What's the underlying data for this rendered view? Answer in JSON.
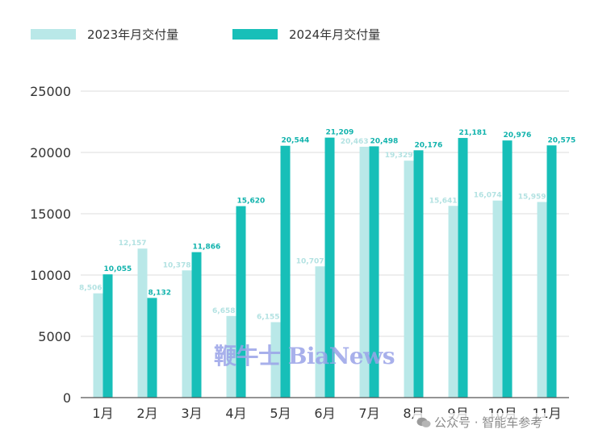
{
  "legend": {
    "items": [
      {
        "label": "2023年月交付量",
        "color": "#b9e8e8"
      },
      {
        "label": "2024年月交付量",
        "color": "#17bfb8"
      }
    ]
  },
  "watermarks": {
    "main": "鞭牛士 BiaNews",
    "source": "公众号 · 智能车参考",
    "source_icon": "wechat-icon"
  },
  "chart_data": {
    "type": "bar",
    "categories": [
      "1月",
      "2月",
      "3月",
      "4月",
      "5月",
      "6月",
      "7月",
      "8月",
      "9月",
      "10月",
      "11月"
    ],
    "series": [
      {
        "name": "2023年月交付量",
        "color": "#b9e8e8",
        "values": [
          8506,
          12157,
          10378,
          6658,
          6155,
          10707,
          20463,
          19329,
          15641,
          16074,
          15959
        ],
        "labels": [
          "8,506",
          "12,157",
          "10,378",
          "6,658",
          "6,155",
          "10,707",
          "20,463",
          "19,329",
          "15,641",
          "16,074",
          "15,959"
        ]
      },
      {
        "name": "2024年月交付量",
        "color": "#17bfb8",
        "values": [
          10055,
          8132,
          11866,
          15620,
          20544,
          21209,
          20498,
          20176,
          21181,
          20976,
          20575
        ],
        "labels": [
          "10,055",
          "8,132",
          "11,866",
          "15,620",
          "20,544",
          "21,209",
          "20,498",
          "20,176",
          "21,181",
          "20,976",
          "20,575"
        ]
      }
    ],
    "y_ticks": [
      "0",
      "5000",
      "10000",
      "15000",
      "20000",
      "25000"
    ],
    "ylim": [
      0,
      25000
    ],
    "grid": true,
    "legend_position": "top-left"
  }
}
